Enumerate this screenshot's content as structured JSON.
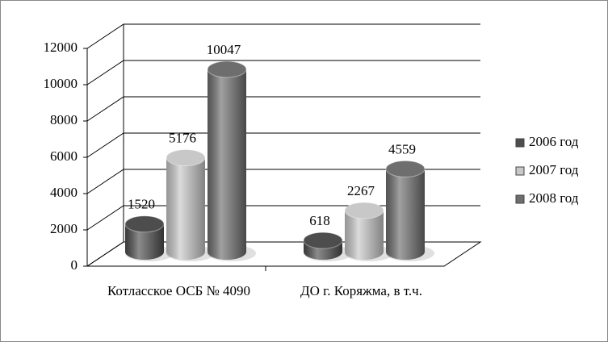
{
  "chart_data": {
    "type": "bar",
    "categories": [
      "Котласское ОСБ № 4090",
      "ДО г. Коряжма, в т.ч."
    ],
    "series": [
      {
        "name": "2006 год",
        "color": "#4d4d4d",
        "values": [
          1520,
          618
        ]
      },
      {
        "name": "2007 год",
        "color": "#c8c8c8",
        "values": [
          5176,
          2267
        ]
      },
      {
        "name": "2008 год",
        "color": "#6e6e6e",
        "values": [
          10047,
          4559
        ]
      }
    ],
    "ylim": [
      0,
      12000
    ],
    "yticks": [
      0,
      2000,
      4000,
      6000,
      8000,
      10000,
      12000
    ],
    "grid": true,
    "legend": "right"
  }
}
